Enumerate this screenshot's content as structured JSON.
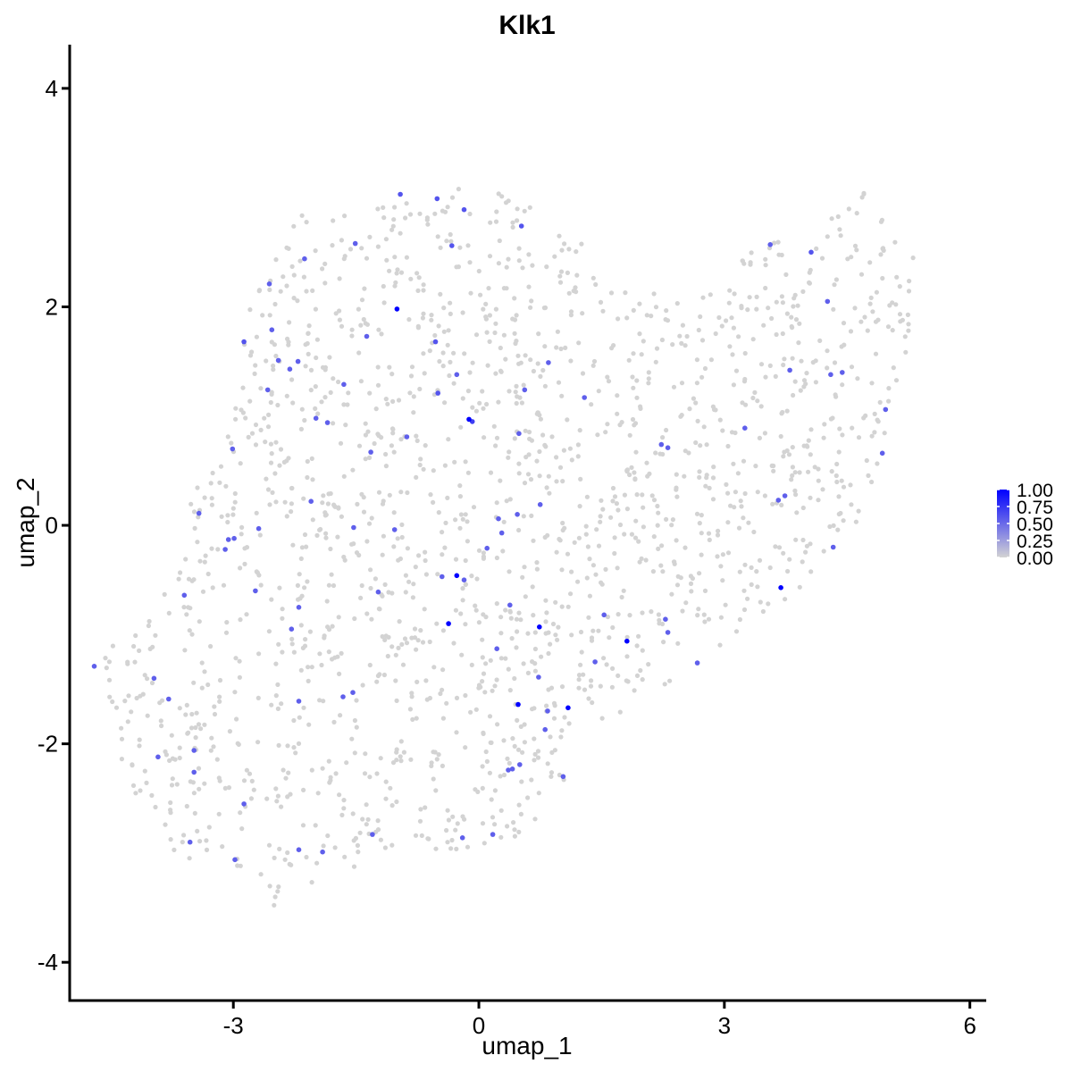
{
  "chart_data": {
    "type": "scatter",
    "title": "Klk1",
    "xlabel": "umap_1",
    "ylabel": "umap_2",
    "xlim": [
      -5.0,
      6.2
    ],
    "ylim": [
      -4.35,
      4.4
    ],
    "x_ticks": [
      -3,
      0,
      3,
      6
    ],
    "x_tick_labels": [
      "-3",
      "0",
      "3",
      "6"
    ],
    "y_ticks": [
      -4,
      -2,
      0,
      2,
      4
    ],
    "y_tick_labels": [
      "-4",
      "-2",
      "0",
      "2",
      "4"
    ],
    "grid": false,
    "legend": {
      "placement": "right",
      "type": "colorbar",
      "range": [
        0,
        1
      ],
      "breaks": [
        1.0,
        0.75,
        0.5,
        0.25,
        0.0
      ],
      "break_labels": [
        "1.00",
        "0.75",
        "0.50",
        "0.25",
        "0.00"
      ],
      "low_color": "#d3d3d3",
      "high_color": "#0000ff"
    },
    "background_point_color": "#d3d3d3",
    "expressing_points": [
      {
        "x": -1.0,
        "y": 1.98,
        "value": 1.0
      },
      {
        "x": -0.12,
        "y": 0.97,
        "value": 1.0
      },
      {
        "x": -0.27,
        "y": -0.46,
        "value": 1.0
      },
      {
        "x": -0.37,
        "y": -0.9,
        "value": 1.0
      },
      {
        "x": 0.74,
        "y": -0.93,
        "value": 1.0
      },
      {
        "x": 1.81,
        "y": -1.06,
        "value": 1.0
      },
      {
        "x": 3.69,
        "y": -0.57,
        "value": 1.0
      },
      {
        "x": 0.48,
        "y": -1.64,
        "value": 1.0
      },
      {
        "x": 1.09,
        "y": -1.67,
        "value": 1.0
      },
      {
        "x": -0.96,
        "y": 3.03,
        "value": 0.6
      },
      {
        "x": -0.51,
        "y": 2.99,
        "value": 0.6
      },
      {
        "x": -0.18,
        "y": 2.89,
        "value": 0.6
      },
      {
        "x": 0.52,
        "y": 2.74,
        "value": 0.6
      },
      {
        "x": -1.51,
        "y": 2.58,
        "value": 0.55
      },
      {
        "x": -2.13,
        "y": 2.44,
        "value": 0.55
      },
      {
        "x": -0.33,
        "y": 2.56,
        "value": 0.6
      },
      {
        "x": -2.56,
        "y": 2.21,
        "value": 0.55
      },
      {
        "x": -2.53,
        "y": 1.79,
        "value": 0.55
      },
      {
        "x": -2.87,
        "y": 1.68,
        "value": 0.6
      },
      {
        "x": -1.37,
        "y": 1.73,
        "value": 0.55
      },
      {
        "x": -0.53,
        "y": 1.68,
        "value": 0.6
      },
      {
        "x": -2.45,
        "y": 1.51,
        "value": 0.55
      },
      {
        "x": -2.21,
        "y": 1.5,
        "value": 0.55
      },
      {
        "x": -2.31,
        "y": 1.43,
        "value": 0.55
      },
      {
        "x": -0.27,
        "y": 1.38,
        "value": 0.55
      },
      {
        "x": 0.85,
        "y": 1.49,
        "value": 0.55
      },
      {
        "x": -1.65,
        "y": 1.29,
        "value": 0.55
      },
      {
        "x": -2.58,
        "y": 1.24,
        "value": 0.55
      },
      {
        "x": -0.5,
        "y": 1.21,
        "value": 0.6
      },
      {
        "x": 0.56,
        "y": 1.24,
        "value": 0.55
      },
      {
        "x": 1.29,
        "y": 1.17,
        "value": 0.55
      },
      {
        "x": -1.99,
        "y": 0.98,
        "value": 0.55
      },
      {
        "x": -1.85,
        "y": 0.94,
        "value": 0.55
      },
      {
        "x": -0.08,
        "y": 0.95,
        "value": 0.7
      },
      {
        "x": -0.88,
        "y": 0.81,
        "value": 0.55
      },
      {
        "x": 0.49,
        "y": 0.84,
        "value": 0.55
      },
      {
        "x": 2.23,
        "y": 0.74,
        "value": 0.55
      },
      {
        "x": 2.31,
        "y": 0.71,
        "value": 0.55
      },
      {
        "x": 3.25,
        "y": 0.89,
        "value": 0.55
      },
      {
        "x": -3.01,
        "y": 0.7,
        "value": 0.55
      },
      {
        "x": -1.32,
        "y": 0.67,
        "value": 0.55
      },
      {
        "x": 4.97,
        "y": 1.06,
        "value": 0.55
      },
      {
        "x": 4.93,
        "y": 0.66,
        "value": 0.55
      },
      {
        "x": 3.66,
        "y": 0.23,
        "value": 0.55
      },
      {
        "x": 3.74,
        "y": 0.27,
        "value": 0.55
      },
      {
        "x": 4.26,
        "y": 2.05,
        "value": 0.55
      },
      {
        "x": 4.06,
        "y": 2.5,
        "value": 0.6
      },
      {
        "x": 3.56,
        "y": 2.57,
        "value": 0.55
      },
      {
        "x": 3.8,
        "y": 1.42,
        "value": 0.55
      },
      {
        "x": 4.3,
        "y": 1.38,
        "value": 0.55
      },
      {
        "x": 4.44,
        "y": 1.4,
        "value": 0.55
      },
      {
        "x": -2.05,
        "y": 0.22,
        "value": 0.55
      },
      {
        "x": -3.42,
        "y": 0.11,
        "value": 0.55
      },
      {
        "x": -2.99,
        "y": -0.12,
        "value": 0.55
      },
      {
        "x": -3.06,
        "y": -0.13,
        "value": 0.55
      },
      {
        "x": -3.1,
        "y": -0.22,
        "value": 0.55
      },
      {
        "x": -2.69,
        "y": -0.03,
        "value": 0.55
      },
      {
        "x": -1.53,
        "y": -0.02,
        "value": 0.55
      },
      {
        "x": -1.03,
        "y": -0.04,
        "value": 0.55
      },
      {
        "x": 0.24,
        "y": 0.06,
        "value": 0.55
      },
      {
        "x": 0.47,
        "y": 0.1,
        "value": 0.55
      },
      {
        "x": 0.75,
        "y": 0.19,
        "value": 0.55
      },
      {
        "x": 0.28,
        "y": -0.07,
        "value": 0.55
      },
      {
        "x": 0.1,
        "y": -0.21,
        "value": 0.55
      },
      {
        "x": 4.33,
        "y": -0.2,
        "value": 0.55
      },
      {
        "x": -0.45,
        "y": -0.47,
        "value": 0.55
      },
      {
        "x": -0.18,
        "y": -0.5,
        "value": 0.55
      },
      {
        "x": -3.6,
        "y": -0.64,
        "value": 0.55
      },
      {
        "x": -2.73,
        "y": -0.6,
        "value": 0.55
      },
      {
        "x": -1.23,
        "y": -0.61,
        "value": 0.55
      },
      {
        "x": -2.2,
        "y": -0.75,
        "value": 0.55
      },
      {
        "x": -2.29,
        "y": -0.95,
        "value": 0.55
      },
      {
        "x": 0.38,
        "y": -0.73,
        "value": 0.55
      },
      {
        "x": 1.53,
        "y": -0.82,
        "value": 0.55
      },
      {
        "x": 2.28,
        "y": -0.86,
        "value": 0.55
      },
      {
        "x": 2.31,
        "y": -0.98,
        "value": 0.55
      },
      {
        "x": 0.22,
        "y": -1.13,
        "value": 0.55
      },
      {
        "x": 1.42,
        "y": -1.25,
        "value": 0.55
      },
      {
        "x": 2.67,
        "y": -1.26,
        "value": 0.55
      },
      {
        "x": -4.7,
        "y": -1.29,
        "value": 0.55
      },
      {
        "x": -3.97,
        "y": -1.4,
        "value": 0.55
      },
      {
        "x": 0.73,
        "y": -1.39,
        "value": 0.55
      },
      {
        "x": -3.79,
        "y": -1.59,
        "value": 0.55
      },
      {
        "x": -1.66,
        "y": -1.57,
        "value": 0.55
      },
      {
        "x": -1.54,
        "y": -1.53,
        "value": 0.55
      },
      {
        "x": -2.2,
        "y": -1.61,
        "value": 0.55
      },
      {
        "x": 0.84,
        "y": -1.7,
        "value": 0.55
      },
      {
        "x": 0.81,
        "y": -1.87,
        "value": 0.55
      },
      {
        "x": -3.92,
        "y": -2.12,
        "value": 0.55
      },
      {
        "x": -3.48,
        "y": -2.06,
        "value": 0.55
      },
      {
        "x": -3.48,
        "y": -2.26,
        "value": 0.55
      },
      {
        "x": 0.36,
        "y": -2.24,
        "value": 0.55
      },
      {
        "x": 0.41,
        "y": -2.23,
        "value": 0.55
      },
      {
        "x": 0.5,
        "y": -2.19,
        "value": 0.55
      },
      {
        "x": 1.03,
        "y": -2.3,
        "value": 0.55
      },
      {
        "x": -2.87,
        "y": -2.55,
        "value": 0.55
      },
      {
        "x": -3.53,
        "y": -2.9,
        "value": 0.55
      },
      {
        "x": -1.3,
        "y": -2.83,
        "value": 0.55
      },
      {
        "x": -0.2,
        "y": -2.86,
        "value": 0.55
      },
      {
        "x": 0.17,
        "y": -2.83,
        "value": 0.55
      },
      {
        "x": -2.2,
        "y": -2.97,
        "value": 0.55
      },
      {
        "x": -1.91,
        "y": -2.99,
        "value": 0.55
      },
      {
        "x": -2.98,
        "y": -3.06,
        "value": 0.55
      }
    ],
    "background_region": [
      [
        -4.7,
        -1.25
      ],
      [
        -4.2,
        -0.9
      ],
      [
        -3.7,
        -0.5
      ],
      [
        -3.55,
        0.2
      ],
      [
        -3.0,
        1.1
      ],
      [
        -2.8,
        2.1
      ],
      [
        -2.2,
        2.85
      ],
      [
        -1.3,
        3.0
      ],
      [
        -0.4,
        3.1
      ],
      [
        0.6,
        3.0
      ],
      [
        1.1,
        2.8
      ],
      [
        1.6,
        2.3
      ],
      [
        2.6,
        2.0
      ],
      [
        3.3,
        2.5
      ],
      [
        4.0,
        2.75
      ],
      [
        4.7,
        3.05
      ],
      [
        5.35,
        2.5
      ],
      [
        5.3,
        1.9
      ],
      [
        5.1,
        1.0
      ],
      [
        4.8,
        0.3
      ],
      [
        4.4,
        -0.3
      ],
      [
        3.7,
        -0.7
      ],
      [
        3.0,
        -1.1
      ],
      [
        2.4,
        -1.4
      ],
      [
        1.5,
        -1.9
      ],
      [
        1.0,
        -2.4
      ],
      [
        0.7,
        -2.9
      ],
      [
        -0.1,
        -3.0
      ],
      [
        -0.7,
        -3.1
      ],
      [
        -1.4,
        -3.1
      ],
      [
        -2.0,
        -3.35
      ],
      [
        -2.5,
        -3.5
      ],
      [
        -3.2,
        -3.2
      ],
      [
        -3.9,
        -2.9
      ],
      [
        -4.3,
        -2.3
      ],
      [
        -4.5,
        -1.8
      ]
    ],
    "background_point_count": 1750
  }
}
